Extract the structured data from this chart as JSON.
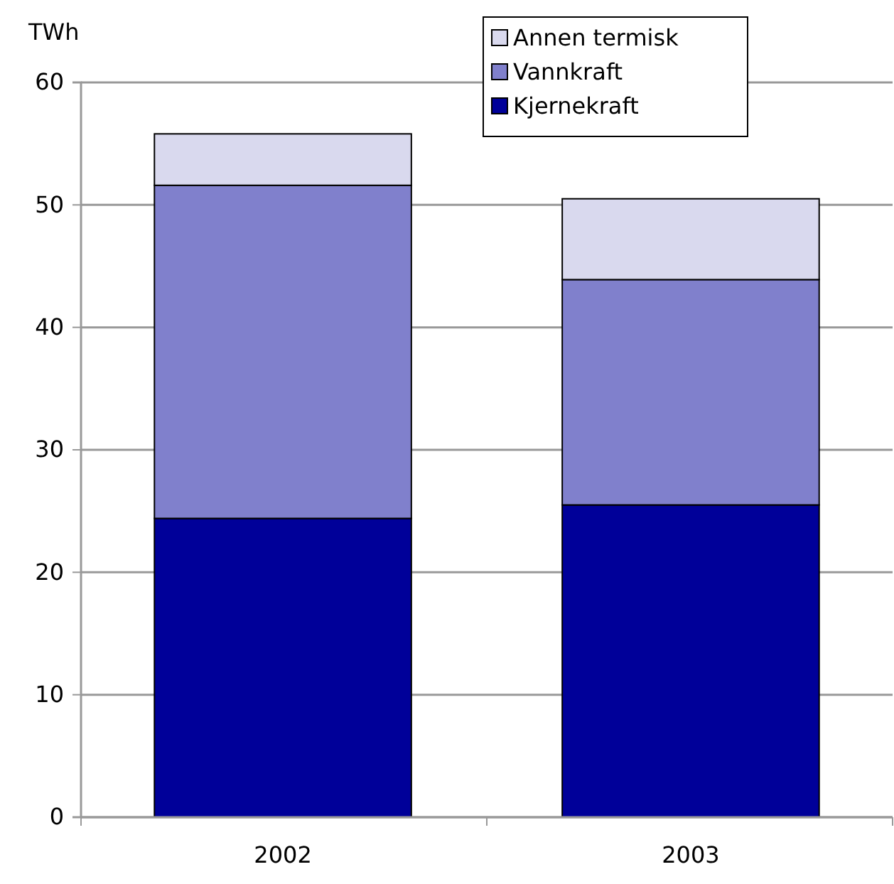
{
  "chart_data": {
    "type": "bar",
    "stacked": true,
    "ylabel": "TWh",
    "categories": [
      "2002",
      "2003"
    ],
    "series": [
      {
        "name": "Kjernekraft",
        "color": "#000099",
        "values": [
          24.4,
          25.5
        ]
      },
      {
        "name": "Vannkraft",
        "color": "#8080cc",
        "values": [
          27.2,
          18.4
        ]
      },
      {
        "name": "Annen termisk",
        "color": "#d9d9ee",
        "values": [
          4.2,
          6.6
        ]
      }
    ],
    "ylim": [
      0,
      60
    ],
    "yticks": [
      0,
      10,
      20,
      30,
      40,
      50,
      60
    ],
    "grid": "y",
    "legend": "top right"
  }
}
